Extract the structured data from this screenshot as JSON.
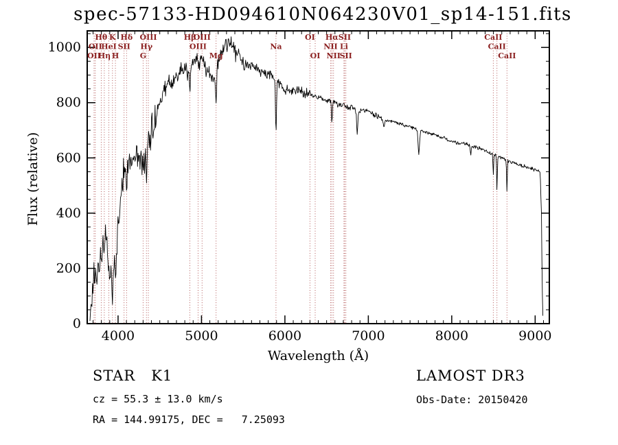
{
  "chart_data": {
    "type": "line",
    "title": "spec-57133-HD094610N064230V01_sp14-151.fits",
    "xlabel": "Wavelength (Å)",
    "ylabel": "Flux (relative)",
    "xlim": [
      3630,
      9170
    ],
    "ylim": [
      0,
      1060
    ],
    "xticks": [
      4000,
      5000,
      6000,
      7000,
      8000,
      9000
    ],
    "yticks": [
      0,
      200,
      400,
      600,
      800,
      1000
    ],
    "x_minor_step": 100,
    "y_minor_step": 50,
    "grid": false,
    "legend": "none",
    "colors": {
      "spectrum": "#000000",
      "frame": "#000000",
      "ref_line": "#aa4444",
      "line_label": "#8b2020"
    },
    "sample_start": 3663,
    "sample_end": 9095,
    "sample_step": 6,
    "noise_seed": 20150420,
    "noise_regions": [
      {
        "from": 3630,
        "to": 4000,
        "amp": 55
      },
      {
        "from": 4000,
        "to": 4450,
        "amp": 70
      },
      {
        "from": 4450,
        "to": 5550,
        "amp": 38
      },
      {
        "from": 5550,
        "to": 6300,
        "amp": 22
      },
      {
        "from": 6300,
        "to": 7200,
        "amp": 12
      },
      {
        "from": 7200,
        "to": 9170,
        "amp": 8
      }
    ],
    "envelope": [
      [
        3663,
        0
      ],
      [
        3672,
        60
      ],
      [
        3680,
        20
      ],
      [
        3690,
        140
      ],
      [
        3700,
        90
      ],
      [
        3710,
        200
      ],
      [
        3720,
        120
      ],
      [
        3730,
        210
      ],
      [
        3745,
        150
      ],
      [
        3760,
        230
      ],
      [
        3775,
        170
      ],
      [
        3790,
        250
      ],
      [
        3805,
        230
      ],
      [
        3820,
        290
      ],
      [
        3835,
        260
      ],
      [
        3850,
        340
      ],
      [
        3865,
        300
      ],
      [
        3880,
        230
      ],
      [
        3895,
        170
      ],
      [
        3910,
        200
      ],
      [
        3925,
        170
      ],
      [
        3940,
        190
      ],
      [
        3955,
        240
      ],
      [
        3970,
        230
      ],
      [
        3985,
        290
      ],
      [
        4000,
        360
      ],
      [
        4020,
        430
      ],
      [
        4040,
        500
      ],
      [
        4060,
        530
      ],
      [
        4080,
        545
      ],
      [
        4100,
        555
      ],
      [
        4130,
        575
      ],
      [
        4160,
        590
      ],
      [
        4200,
        610
      ],
      [
        4240,
        600
      ],
      [
        4280,
        585
      ],
      [
        4320,
        600
      ],
      [
        4360,
        640
      ],
      [
        4400,
        690
      ],
      [
        4440,
        730
      ],
      [
        4480,
        780
      ],
      [
        4520,
        815
      ],
      [
        4560,
        850
      ],
      [
        4600,
        880
      ],
      [
        4640,
        865
      ],
      [
        4680,
        885
      ],
      [
        4720,
        900
      ],
      [
        4760,
        915
      ],
      [
        4800,
        920
      ],
      [
        4840,
        912
      ],
      [
        4880,
        930
      ],
      [
        4920,
        945
      ],
      [
        4960,
        950
      ],
      [
        5000,
        945
      ],
      [
        5040,
        930
      ],
      [
        5080,
        915
      ],
      [
        5120,
        900
      ],
      [
        5160,
        890
      ],
      [
        5200,
        945
      ],
      [
        5240,
        985
      ],
      [
        5280,
        1005
      ],
      [
        5320,
        1015
      ],
      [
        5360,
        1005
      ],
      [
        5400,
        985
      ],
      [
        5440,
        965
      ],
      [
        5480,
        955
      ],
      [
        5520,
        948
      ],
      [
        5560,
        940
      ],
      [
        5600,
        935
      ],
      [
        5650,
        925
      ],
      [
        5700,
        915
      ],
      [
        5750,
        910
      ],
      [
        5800,
        903
      ],
      [
        5850,
        897
      ],
      [
        5900,
        875
      ],
      [
        5950,
        865
      ],
      [
        6000,
        850
      ],
      [
        6100,
        845
      ],
      [
        6200,
        838
      ],
      [
        6300,
        830
      ],
      [
        6400,
        818
      ],
      [
        6500,
        808
      ],
      [
        6600,
        798
      ],
      [
        6700,
        790
      ],
      [
        6800,
        783
      ],
      [
        6900,
        770
      ],
      [
        7000,
        768
      ],
      [
        7100,
        750
      ],
      [
        7200,
        740
      ],
      [
        7300,
        730
      ],
      [
        7400,
        722
      ],
      [
        7500,
        712
      ],
      [
        7600,
        700
      ],
      [
        7700,
        692
      ],
      [
        7800,
        683
      ],
      [
        7900,
        672
      ],
      [
        8000,
        662
      ],
      [
        8100,
        653
      ],
      [
        8200,
        648
      ],
      [
        8300,
        638
      ],
      [
        8400,
        628
      ],
      [
        8500,
        612
      ],
      [
        8600,
        600
      ],
      [
        8700,
        588
      ],
      [
        8800,
        576
      ],
      [
        8900,
        566
      ],
      [
        9000,
        558
      ],
      [
        9040,
        552
      ],
      [
        9060,
        548
      ],
      [
        9075,
        400
      ],
      [
        9085,
        120
      ],
      [
        9095,
        10
      ]
    ],
    "absorption_dips": [
      [
        3933,
        100,
        7
      ],
      [
        3968,
        90,
        7
      ],
      [
        4102,
        80,
        7
      ],
      [
        4340,
        90,
        7
      ],
      [
        4861,
        100,
        7
      ],
      [
        5175,
        130,
        9
      ],
      [
        5893,
        185,
        8
      ],
      [
        6563,
        75,
        7
      ],
      [
        6867,
        85,
        10
      ],
      [
        7186,
        35,
        10
      ],
      [
        7605,
        85,
        12
      ],
      [
        8227,
        35,
        8
      ],
      [
        8498,
        75,
        6
      ],
      [
        8542,
        125,
        6
      ],
      [
        8662,
        115,
        6
      ]
    ],
    "spectral_lines": [
      {
        "wavelength": 3712,
        "label": "OII",
        "row": 3
      },
      {
        "wavelength": 3727,
        "label": "OII",
        "row": 2
      },
      {
        "wavelength": 3798,
        "label": "Hθ",
        "row": 1
      },
      {
        "wavelength": 3835,
        "label": "Hη",
        "row": 3
      },
      {
        "wavelength": 3889,
        "label": "HeI",
        "row": 2
      },
      {
        "wavelength": 3933,
        "label": "K",
        "row": 1
      },
      {
        "wavelength": 3968,
        "label": "H",
        "row": 3
      },
      {
        "wavelength": 4072,
        "label": "SII",
        "row": 2
      },
      {
        "wavelength": 4102,
        "label": "Hδ",
        "row": 1
      },
      {
        "wavelength": 4300,
        "label": "G",
        "row": 3
      },
      {
        "wavelength": 4340,
        "label": "Hγ",
        "row": 2
      },
      {
        "wavelength": 4363,
        "label": "OIII",
        "row": 1
      },
      {
        "wavelength": 4861,
        "label": "Hβ",
        "row": 1
      },
      {
        "wavelength": 4959,
        "label": "OIII",
        "row": 2
      },
      {
        "wavelength": 5007,
        "label": "OIII",
        "row": 1
      },
      {
        "wavelength": 5175,
        "label": "Mg",
        "row": 3
      },
      {
        "wavelength": 5893,
        "label": "Na",
        "row": 2
      },
      {
        "wavelength": 6300,
        "label": "OI",
        "row": 1
      },
      {
        "wavelength": 6363,
        "label": "OI",
        "row": 3
      },
      {
        "wavelength": 6548,
        "label": "NII",
        "row": 2
      },
      {
        "wavelength": 6563,
        "label": "Hα",
        "row": 1
      },
      {
        "wavelength": 6583,
        "label": "NII",
        "row": 3
      },
      {
        "wavelength": 6708,
        "label": "Li",
        "row": 2
      },
      {
        "wavelength": 6716,
        "label": "SII",
        "row": 1
      },
      {
        "wavelength": 6731,
        "label": "SII",
        "row": 3
      },
      {
        "wavelength": 8498,
        "label": "CaII",
        "row": 1
      },
      {
        "wavelength": 8542,
        "label": "CaII",
        "row": 2
      },
      {
        "wavelength": 8662,
        "label": "CaII",
        "row": 3
      }
    ]
  },
  "footer": {
    "object_type": "STAR   K1",
    "cz": "cz = 55.3 ± 13.0 km/s",
    "radec": "RA = 144.99175, DEC =   7.25093",
    "survey": "LAMOST DR3",
    "obs_date": "Obs-Date: 20150420"
  }
}
